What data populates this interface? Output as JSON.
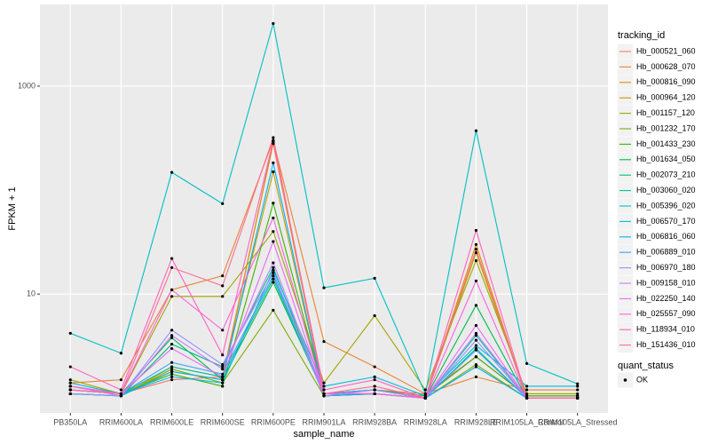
{
  "chart_data": {
    "type": "line",
    "x_label": "sample_name",
    "y_label": "FPKM + 1",
    "categories": [
      "PB350LA",
      "RRIM600LA",
      "RRIM600LE",
      "RRIM600SE",
      "RRIM600PE",
      "RRIM901LA",
      "RRIM928BA",
      "RRIM928LA",
      "RRIM928LE",
      "RRIM105LA_Control",
      "RRIM105LA_Stressed"
    ],
    "ylim": [
      0.72,
      6100
    ],
    "yticks": [
      10,
      1000
    ],
    "log_scale": true,
    "grid": true,
    "legend_title": "tracking_id",
    "legend_position": "right",
    "shape_legend": {
      "title": "quant_status",
      "items": [
        "OK"
      ]
    },
    "series": [
      {
        "name": "Hb_000521_060",
        "color": "#F8766D",
        "values": [
          1.2,
          1.1,
          1.5,
          1.6,
          280,
          1.1,
          1.2,
          1.1,
          2.5,
          1.05,
          1.05
        ]
      },
      {
        "name": "Hb_000628_070",
        "color": "#EA8331",
        "values": [
          1.4,
          1.5,
          11,
          15,
          300,
          3.5,
          2.0,
          1.1,
          1.6,
          1.2,
          1.2
        ]
      },
      {
        "name": "Hb_000816_090",
        "color": "#D89000",
        "values": [
          1.3,
          1.1,
          1.8,
          1.5,
          290,
          1.1,
          1.1,
          1.0,
          30,
          1.0,
          1.0
        ]
      },
      {
        "name": "Hb_000964_120",
        "color": "#C09B00",
        "values": [
          1.1,
          1.05,
          2.0,
          1.6,
          150,
          1.05,
          1.1,
          1.0,
          25,
          1.0,
          1.0
        ]
      },
      {
        "name": "Hb_001157_120",
        "color": "#A3A500",
        "values": [
          1.5,
          1.1,
          9.5,
          9.5,
          40,
          1.4,
          6.2,
          1.2,
          21,
          1.1,
          1.1
        ]
      },
      {
        "name": "Hb_001232_170",
        "color": "#7CAE00",
        "values": [
          1.1,
          1.05,
          1.9,
          1.4,
          7,
          1.05,
          1.1,
          1.0,
          2.1,
          1.0,
          1.0
        ]
      },
      {
        "name": "Hb_001433_230",
        "color": "#39B600",
        "values": [
          1.2,
          1.1,
          1.7,
          1.3,
          75,
          1.1,
          1.2,
          1.05,
          2.5,
          1.05,
          1.05
        ]
      },
      {
        "name": "Hb_001634_050",
        "color": "#00BB4E",
        "values": [
          1.3,
          1.1,
          3.8,
          1.5,
          13,
          1.1,
          1.2,
          1.0,
          7.8,
          1.0,
          1.0
        ]
      },
      {
        "name": "Hb_002073_210",
        "color": "#00BF7D",
        "values": [
          1.1,
          1.05,
          3.3,
          2.0,
          18,
          1.05,
          1.1,
          1.0,
          3.0,
          1.0,
          1.0
        ]
      },
      {
        "name": "Hb_003060_020",
        "color": "#00C1A3",
        "values": [
          1.2,
          1.1,
          2.0,
          1.6,
          14,
          1.1,
          1.1,
          1.0,
          4.0,
          1.0,
          1.0
        ]
      },
      {
        "name": "Hb_005396_020",
        "color": "#00BFC4",
        "values": [
          4.2,
          2.7,
          148,
          74,
          4000,
          11.5,
          14.2,
          1.1,
          372,
          2.15,
          1.37
        ]
      },
      {
        "name": "Hb_006570_170",
        "color": "#00BAE0",
        "values": [
          1.4,
          1.1,
          1.6,
          1.4,
          17,
          1.3,
          1.6,
          1.05,
          3.2,
          1.3,
          1.3
        ]
      },
      {
        "name": "Hb_006816_060",
        "color": "#00B0F6",
        "values": [
          1.1,
          1.05,
          1.8,
          1.5,
          183,
          1.05,
          1.1,
          1.0,
          2.0,
          1.0,
          1.0
        ]
      },
      {
        "name": "Hb_006889_010",
        "color": "#35A2FF",
        "values": [
          1.2,
          1.1,
          2.2,
          1.7,
          15,
          1.1,
          1.2,
          1.0,
          2.9,
          1.0,
          1.0
        ]
      },
      {
        "name": "Hb_006970_180",
        "color": "#9590FF",
        "values": [
          1.1,
          1.05,
          4.5,
          2.1,
          16,
          1.05,
          1.2,
          1.0,
          3.6,
          1.0,
          1.0
        ]
      },
      {
        "name": "Hb_009158_010",
        "color": "#C77CFF",
        "values": [
          1.3,
          1.05,
          4.0,
          1.9,
          20,
          1.1,
          1.1,
          1.0,
          4.2,
          1.0,
          1.0
        ]
      },
      {
        "name": "Hb_022250_140",
        "color": "#E76BF3",
        "values": [
          1.2,
          1.1,
          3.0,
          1.6,
          32,
          1.1,
          1.1,
          1.0,
          5.0,
          1.0,
          1.0
        ]
      },
      {
        "name": "Hb_025557_090",
        "color": "#FA62DB",
        "values": [
          1.3,
          1.1,
          11,
          4.5,
          54,
          1.1,
          1.1,
          1.0,
          13.4,
          1.0,
          1.0
        ]
      },
      {
        "name": "Hb_118934_010",
        "color": "#FF62BC",
        "values": [
          2.0,
          1.2,
          22,
          2.6,
          300,
          1.2,
          1.5,
          1.0,
          41,
          1.0,
          1.0
        ]
      },
      {
        "name": "Hb_151436_010",
        "color": "#FF6C91",
        "values": [
          1.2,
          1.1,
          18,
          12,
          320,
          1.1,
          1.3,
          1.0,
          27,
          1.0,
          1.0
        ]
      }
    ]
  }
}
